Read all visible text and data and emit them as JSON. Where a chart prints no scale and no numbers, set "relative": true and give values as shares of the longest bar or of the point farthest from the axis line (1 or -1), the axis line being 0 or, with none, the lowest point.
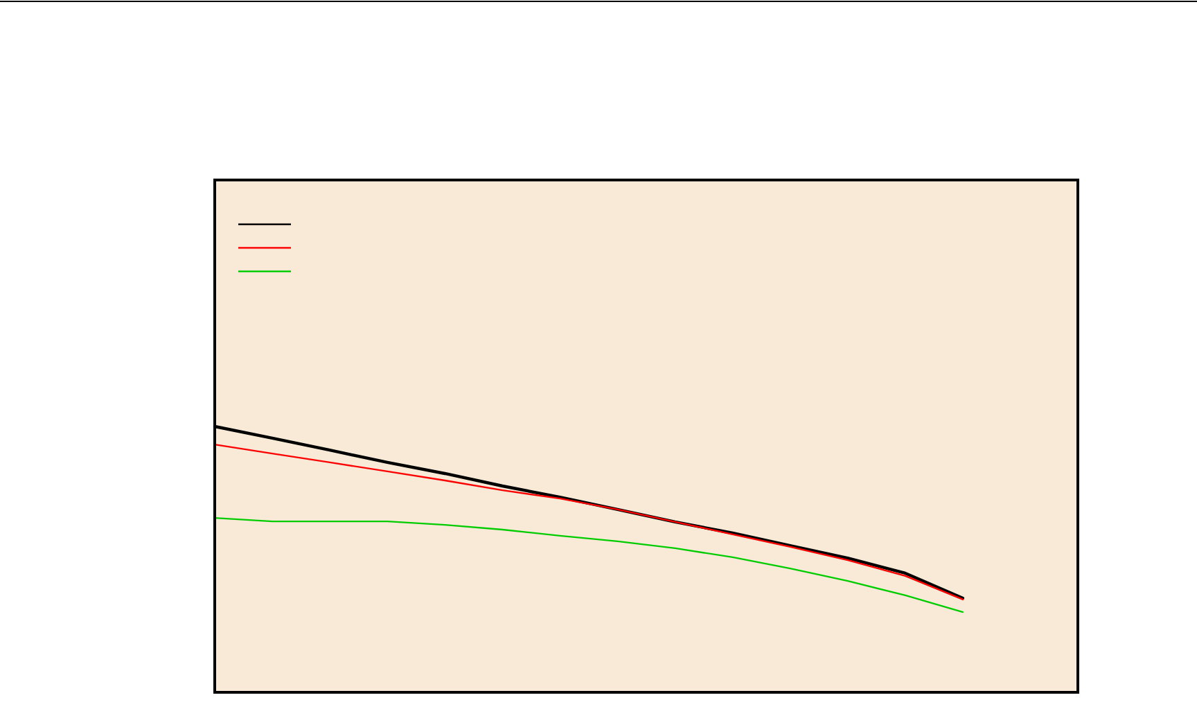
{
  "chart_data": {
    "type": "line",
    "relative": true,
    "categories": [
      null,
      null,
      null,
      null,
      null,
      null,
      null,
      null,
      null,
      null,
      null,
      null,
      null,
      null,
      null,
      null
    ],
    "series": [
      {
        "color": "#000000",
        "values": [
          1,
          0.956,
          0.911,
          0.865,
          0.823,
          0.776,
          0.734,
          0.688,
          0.641,
          0.599,
          0.552,
          0.505,
          0.448,
          0.354,
          null,
          null
        ]
      },
      {
        "color": "#ff0000",
        "values": [
          0.932,
          0.898,
          0.865,
          0.831,
          0.797,
          0.76,
          0.729,
          0.688,
          0.641,
          0.594,
          0.547,
          0.497,
          0.438,
          0.349,
          null,
          null
        ]
      },
      {
        "color": "#00cc00",
        "values": [
          0.656,
          0.643,
          0.643,
          0.643,
          0.63,
          0.612,
          0.589,
          0.568,
          0.542,
          0.508,
          0.466,
          0.419,
          0.365,
          0.302,
          null,
          null
        ]
      }
    ]
  }
}
